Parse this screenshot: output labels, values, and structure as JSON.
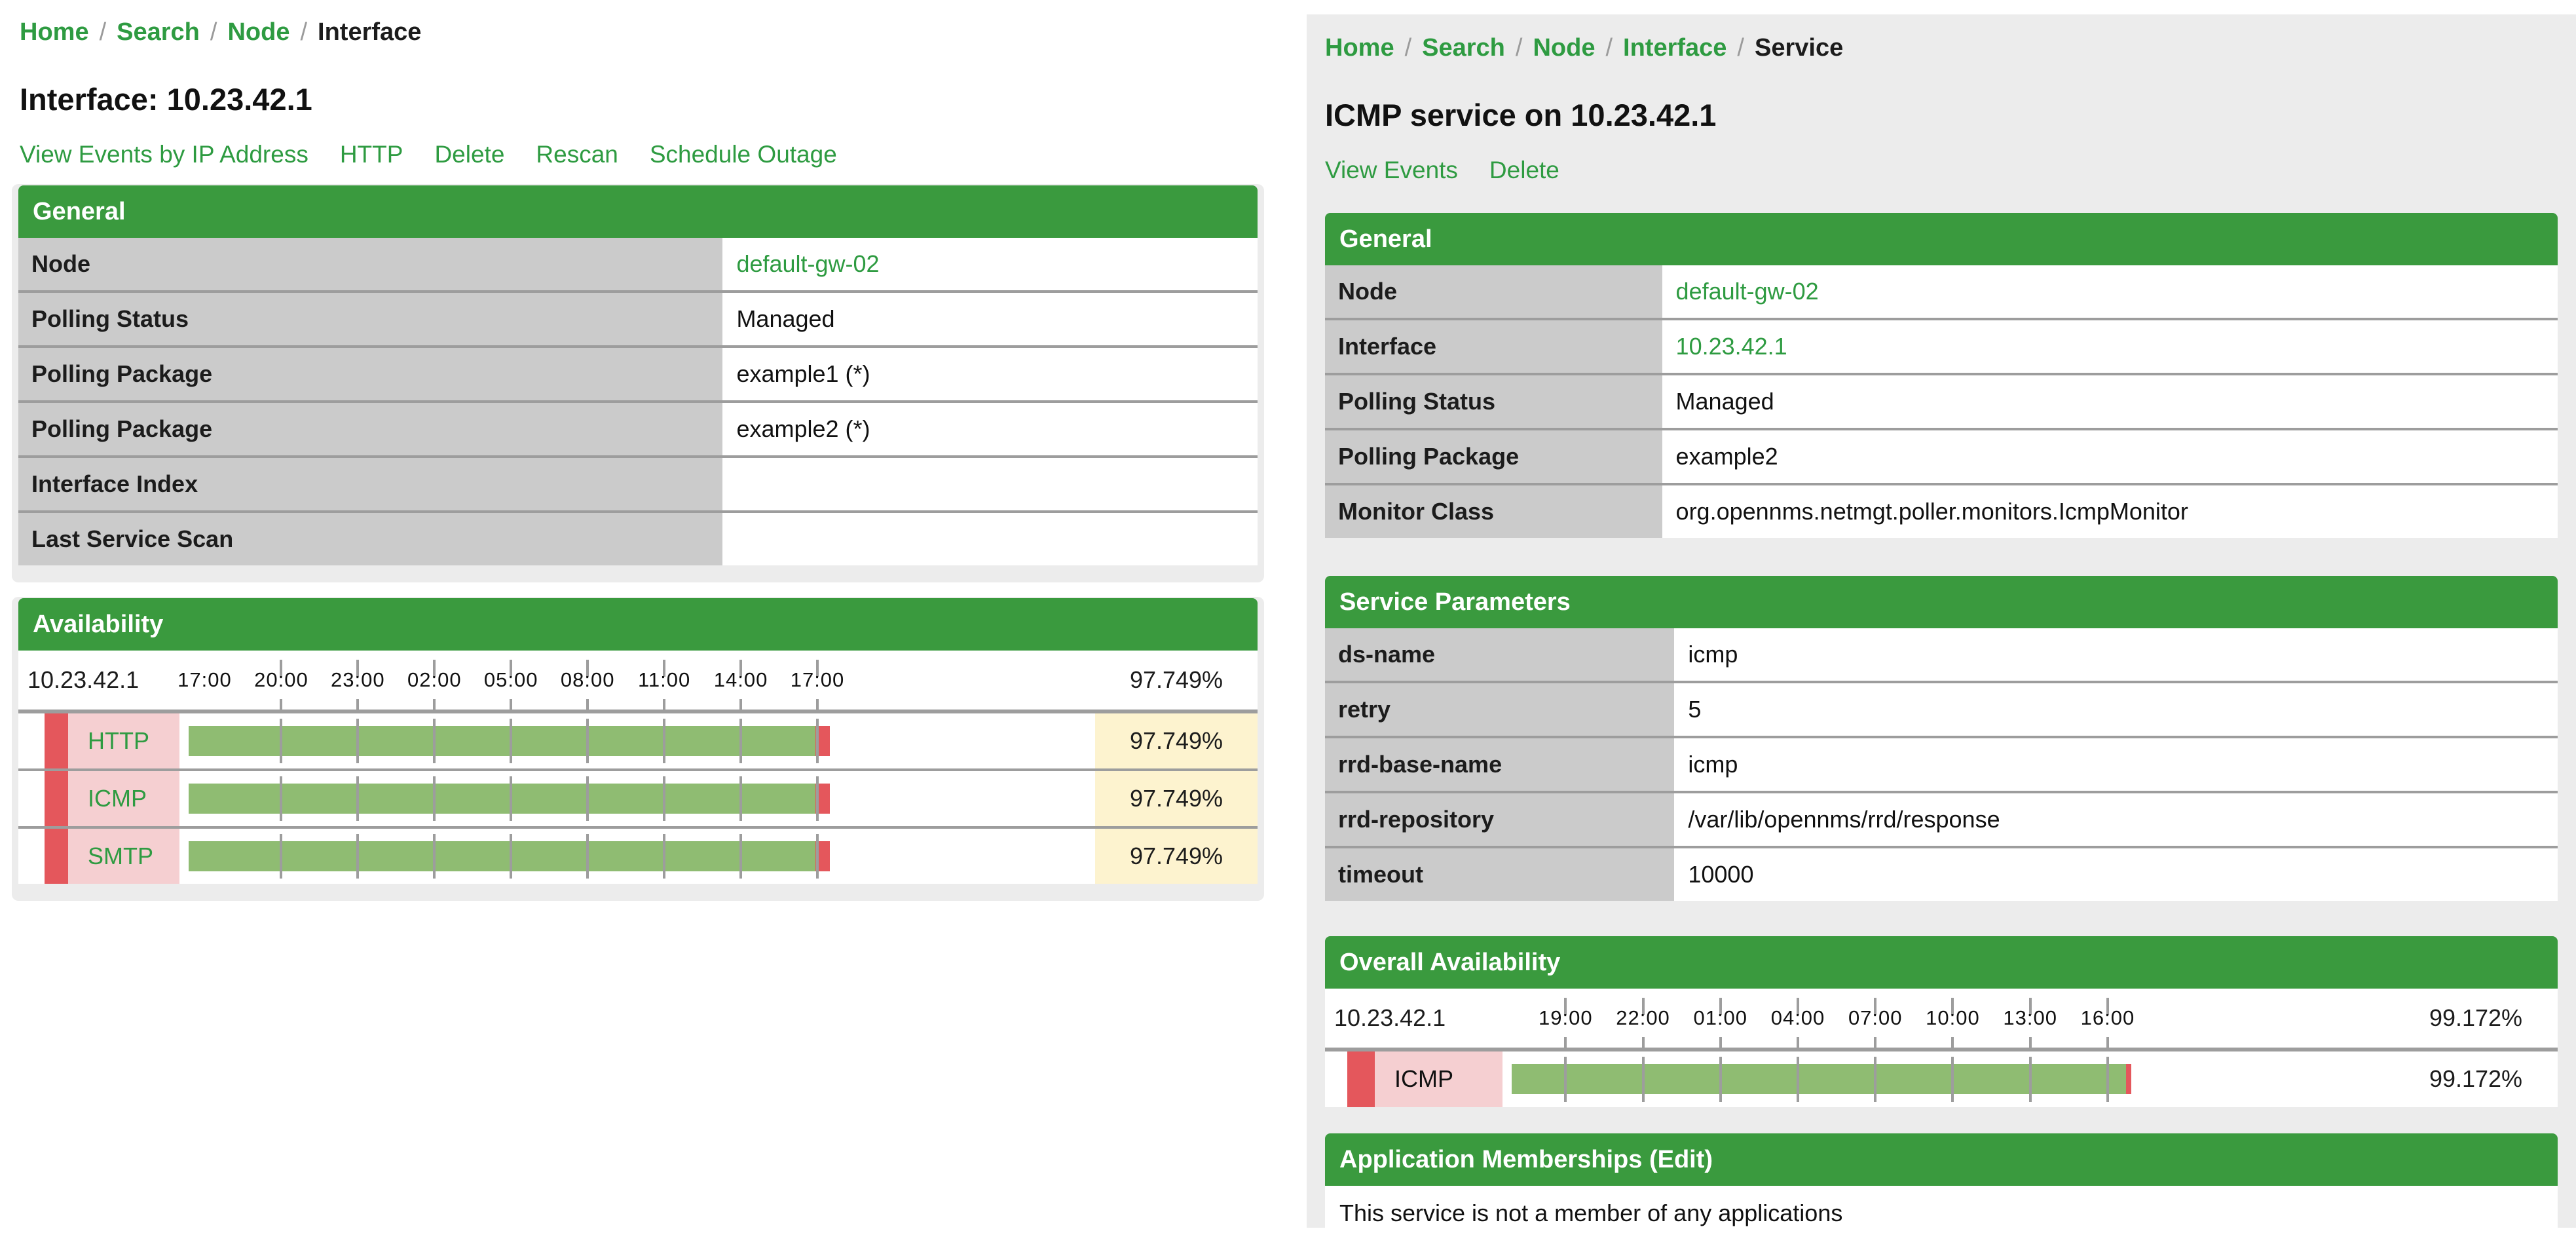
{
  "left_page": {
    "breadcrumb": {
      "links": [
        "Home",
        "Search",
        "Node"
      ],
      "current": "Interface",
      "separator": "/"
    },
    "title": "Interface: 10.23.42.1",
    "actions": [
      "View Events by IP Address",
      "HTTP",
      "Delete",
      "Rescan",
      "Schedule Outage"
    ],
    "general": {
      "header": "General",
      "rows": [
        {
          "label": "Node",
          "value": "default-gw-02",
          "link": true
        },
        {
          "label": "Polling Status",
          "value": "Managed"
        },
        {
          "label": "Polling Package",
          "value": "example1 (*)"
        },
        {
          "label": "Polling Package",
          "value": "example2 (*)"
        },
        {
          "label": "Interface Index",
          "value": ""
        },
        {
          "label": "Last Service Scan",
          "value": ""
        }
      ]
    },
    "availability": {
      "header": "Availability",
      "ip": "10.23.42.1",
      "overall": "97.749%",
      "axis_labels": [
        "17:00",
        "20:00",
        "23:00",
        "02:00",
        "05:00",
        "08:00",
        "11:00",
        "14:00",
        "17:00"
      ],
      "services": [
        {
          "name": "HTTP",
          "value": "97.749%",
          "pct": 97.749
        },
        {
          "name": "ICMP",
          "value": "97.749%",
          "pct": 97.749
        },
        {
          "name": "SMTP",
          "value": "97.749%",
          "pct": 97.749
        }
      ]
    }
  },
  "right_page": {
    "breadcrumb": {
      "links": [
        "Home",
        "Search",
        "Node",
        "Interface"
      ],
      "current": "Service",
      "separator": "/"
    },
    "title": "ICMP service on 10.23.42.1",
    "actions": [
      "View Events",
      "Delete"
    ],
    "general": {
      "header": "General",
      "rows": [
        {
          "label": "Node",
          "value": "default-gw-02",
          "link": true
        },
        {
          "label": "Interface",
          "value": "10.23.42.1",
          "link": true
        },
        {
          "label": "Polling Status",
          "value": "Managed"
        },
        {
          "label": "Polling Package",
          "value": "example2"
        },
        {
          "label": "Monitor Class",
          "value": "org.opennms.netmgt.poller.monitors.IcmpMonitor"
        }
      ]
    },
    "service_parameters": {
      "header": "Service Parameters",
      "rows": [
        {
          "label": "ds-name",
          "value": "icmp"
        },
        {
          "label": "retry",
          "value": "5"
        },
        {
          "label": "rrd-base-name",
          "value": "icmp"
        },
        {
          "label": "rrd-repository",
          "value": "/var/lib/opennms/rrd/response"
        },
        {
          "label": "timeout",
          "value": "10000"
        }
      ]
    },
    "availability": {
      "header": "Overall Availability",
      "ip": "10.23.42.1",
      "overall": "99.172%",
      "axis_labels": [
        "19:00",
        "22:00",
        "01:00",
        "04:00",
        "07:00",
        "10:00",
        "13:00",
        "16:00"
      ],
      "services": [
        {
          "name": "ICMP",
          "value": "99.172%",
          "pct": 99.172
        }
      ]
    },
    "applications": {
      "header_prefix": "Application Memberships ",
      "edit_label": "(Edit)",
      "body": "This service is not a member of any applications"
    }
  },
  "colors": {
    "header_green": "#3a9a3e",
    "link_green": "#2e9b41",
    "label_gray": "#cbcbcb",
    "row_separator": "#9d9d9d",
    "bar_green": "#8fbc72",
    "bar_red": "#e4575c",
    "outage_pink": "#f5cfd1",
    "warn_yellow": "#fdf3cf",
    "page_gray": "#ececec"
  }
}
